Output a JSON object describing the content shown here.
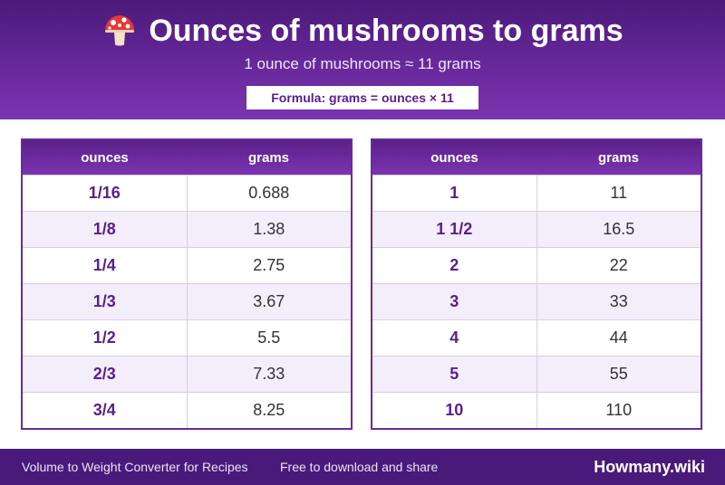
{
  "header": {
    "title": "Ounces of mushrooms to grams",
    "title_icon": "mushroom-icon",
    "subtitle": "1 ounce of mushrooms ≈ 11 grams",
    "formula": "Formula: grams = ounces × 11"
  },
  "tables": [
    {
      "col_ounces": "ounces",
      "col_grams": "grams",
      "rows": [
        {
          "ounces": "1/16",
          "grams": "0.688"
        },
        {
          "ounces": "1/8",
          "grams": "1.38"
        },
        {
          "ounces": "1/4",
          "grams": "2.75"
        },
        {
          "ounces": "1/3",
          "grams": "3.67"
        },
        {
          "ounces": "1/2",
          "grams": "5.5"
        },
        {
          "ounces": "2/3",
          "grams": "7.33"
        },
        {
          "ounces": "3/4",
          "grams": "8.25"
        }
      ]
    },
    {
      "col_ounces": "ounces",
      "col_grams": "grams",
      "rows": [
        {
          "ounces": "1",
          "grams": "11"
        },
        {
          "ounces": "1 1/2",
          "grams": "16.5"
        },
        {
          "ounces": "2",
          "grams": "22"
        },
        {
          "ounces": "3",
          "grams": "33"
        },
        {
          "ounces": "4",
          "grams": "44"
        },
        {
          "ounces": "5",
          "grams": "55"
        },
        {
          "ounces": "10",
          "grams": "110"
        }
      ]
    }
  ],
  "footer": {
    "left_text": "Volume to Weight Converter for Recipes",
    "middle_text": "Free to download and share",
    "brand": "Howmany.wiki"
  },
  "colors": {
    "header_dark": "#4a1a7a",
    "accent": "#6a2a9e",
    "row_alt": "#f3eefa"
  }
}
